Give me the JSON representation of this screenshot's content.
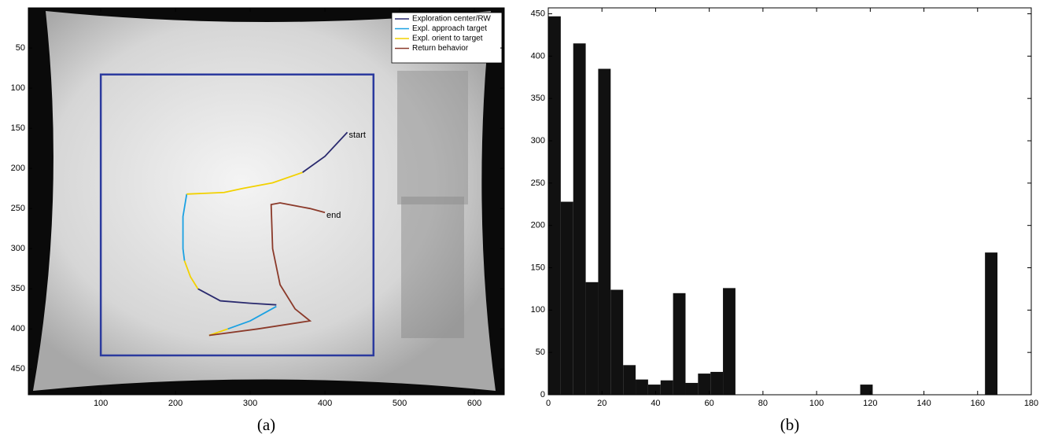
{
  "chart_data": [
    {
      "type": "line",
      "caption": "(a)",
      "xlim": [
        3,
        640
      ],
      "ylim": [
        0,
        482
      ],
      "y_inverted": true,
      "xticks": [
        100,
        200,
        300,
        400,
        500,
        600
      ],
      "yticks": [
        50,
        100,
        150,
        200,
        250,
        300,
        350,
        400,
        450
      ],
      "legend": "upper right",
      "rectangle": {
        "x": [
          100,
          465
        ],
        "y": [
          83,
          433
        ],
        "color": "#2b3a9e"
      },
      "annotations": [
        {
          "text": "start",
          "x": 430,
          "y": 155
        },
        {
          "text": "end",
          "x": 400,
          "y": 255
        }
      ],
      "series": [
        {
          "name": "Exploration center/RW",
          "color": "#2a2a6e",
          "x": [
            430,
            400,
            370,
            null,
            230,
            260,
            300,
            335
          ],
          "values": [
            155,
            185,
            205,
            null,
            350,
            365,
            368,
            370
          ]
        },
        {
          "name": "Expl. approach target",
          "color": "#1ba1e2",
          "x": [
            215,
            210,
            210,
            212,
            null,
            335,
            300,
            270
          ],
          "values": [
            232,
            260,
            300,
            315,
            null,
            372,
            390,
            400
          ]
        },
        {
          "name": "Expl. orient to target",
          "color": "#f2d100",
          "x": [
            370,
            330,
            290,
            265,
            215,
            null,
            212,
            220,
            230,
            null,
            270,
            245
          ],
          "values": [
            205,
            218,
            225,
            230,
            232,
            null,
            315,
            335,
            350,
            null,
            400,
            408
          ]
        },
        {
          "name": "Return behavior",
          "color": "#8b3a2a",
          "x": [
            245,
            310,
            380,
            360,
            340,
            330,
            328,
            340,
            380,
            400
          ],
          "values": [
            408,
            400,
            390,
            375,
            345,
            300,
            245,
            243,
            250,
            255
          ]
        }
      ]
    },
    {
      "type": "histogram",
      "caption": "(b)",
      "color": "#111111",
      "xlim": [
        0,
        180
      ],
      "ylim": [
        0,
        457
      ],
      "xticks": [
        0,
        20,
        40,
        60,
        80,
        100,
        120,
        140,
        160,
        180
      ],
      "yticks": [
        0,
        50,
        100,
        150,
        200,
        250,
        300,
        350,
        400,
        450
      ],
      "bins": [
        0,
        4.65,
        9.3,
        13.95,
        18.6,
        23.25,
        27.9,
        32.55,
        37.2,
        41.85,
        46.5,
        51.15,
        55.8,
        60.45,
        65.1,
        69.75,
        74.4,
        79.05,
        83.7,
        88.35,
        93,
        97.65,
        102.3,
        106.95,
        111.6,
        116.25,
        120.9,
        125.55,
        130.2,
        134.85,
        139.5,
        144.15,
        148.8,
        153.45,
        158.1,
        162.75,
        167.4
      ],
      "values": [
        447,
        228,
        415,
        133,
        385,
        124,
        35,
        18,
        12,
        17,
        120,
        14,
        25,
        27,
        126,
        0,
        0,
        0,
        0,
        0,
        0,
        0,
        0,
        0,
        0,
        12,
        0,
        0,
        0,
        0,
        0,
        0,
        0,
        0,
        0,
        168
      ]
    }
  ]
}
